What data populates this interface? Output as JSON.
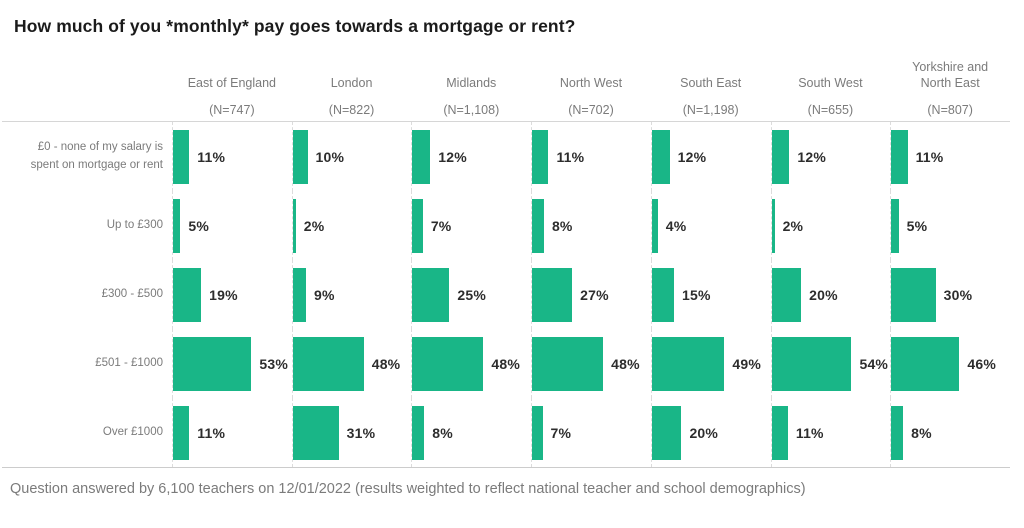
{
  "title": "How much of you *monthly* pay goes towards a mortgage or rent?",
  "footnote": "Question answered by 6,100 teachers on 12/01/2022 (results weighted to reflect national teacher and school demographics)",
  "colors": {
    "bar": "#19b687",
    "heading_text": "#1b1b1b",
    "muted_text": "#7b7b7b",
    "value_text": "#2d2d2d",
    "grid_line": "#dcdcdc"
  },
  "chart_data": {
    "type": "bar",
    "orientation": "horizontal",
    "title": "How much of you *monthly* pay goes towards a mortgage or rent?",
    "categories": [
      "£0 - none of my salary is spent on mortgage or rent",
      "Up to £300",
      "£300 - £500",
      "£501 - £1000",
      "Over £1000"
    ],
    "value_suffix": "%",
    "xlim": [
      0,
      60
    ],
    "grid": "dashed-vertical-column-separators",
    "legend_position": "none",
    "series": [
      {
        "name": "East of England",
        "sample": "(N=747)",
        "values": [
          11,
          5,
          19,
          53,
          11
        ],
        "labels": [
          "11%",
          "5%",
          "19%",
          "53%",
          "11%"
        ]
      },
      {
        "name": "London",
        "sample": "(N=822)",
        "values": [
          10,
          2,
          9,
          48,
          31
        ],
        "labels": [
          "10%",
          "2%",
          "9%",
          "48%",
          "31%"
        ]
      },
      {
        "name": "Midlands",
        "sample": "(N=1,108)",
        "values": [
          12,
          7,
          25,
          48,
          8
        ],
        "labels": [
          "12%",
          "7%",
          "25%",
          "48%",
          "8%"
        ]
      },
      {
        "name": "North West",
        "sample": "(N=702)",
        "values": [
          11,
          8,
          27,
          48,
          7
        ],
        "labels": [
          "11%",
          "8%",
          "27%",
          "48%",
          "7%"
        ]
      },
      {
        "name": "South East",
        "sample": "(N=1,198)",
        "values": [
          12,
          4,
          15,
          49,
          20
        ],
        "labels": [
          "12%",
          "4%",
          "15%",
          "49%",
          "20%"
        ]
      },
      {
        "name": "South West",
        "sample": "(N=655)",
        "values": [
          12,
          2,
          20,
          54,
          11
        ],
        "labels": [
          "12%",
          "2%",
          "20%",
          "54%",
          "11%"
        ]
      },
      {
        "name": "Yorkshire and North East",
        "sample": "(N=807)",
        "values": [
          11,
          5,
          30,
          46,
          8
        ],
        "labels": [
          "11%",
          "5%",
          "30%",
          "46%",
          "8%"
        ]
      }
    ]
  }
}
